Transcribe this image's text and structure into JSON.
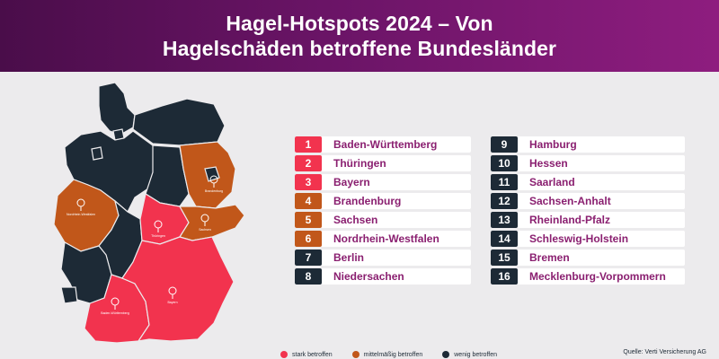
{
  "header": {
    "title_line1": "Hagel-Hotspots 2024 – Von",
    "title_line2": "Hagelschäden betroffene Bundesländer"
  },
  "colors": {
    "header_start": "#4a0d4a",
    "header_end": "#8e1d7f",
    "strong": "#f2334e",
    "medium": "#c1571a",
    "low": "#1d2a36",
    "name_text": "#8a1f70",
    "background": "#ecebed"
  },
  "ranking": [
    {
      "rank": "1",
      "name": "Baden-Württemberg",
      "level": "strong"
    },
    {
      "rank": "2",
      "name": "Thüringen",
      "level": "strong"
    },
    {
      "rank": "3",
      "name": "Bayern",
      "level": "strong"
    },
    {
      "rank": "4",
      "name": "Brandenburg",
      "level": "medium"
    },
    {
      "rank": "5",
      "name": "Sachsen",
      "level": "medium"
    },
    {
      "rank": "6",
      "name": "Nordrhein-Westfalen",
      "level": "medium"
    },
    {
      "rank": "7",
      "name": "Berlin",
      "level": "low"
    },
    {
      "rank": "8",
      "name": "Niedersachen",
      "level": "low"
    },
    {
      "rank": "9",
      "name": "Hamburg",
      "level": "low"
    },
    {
      "rank": "10",
      "name": "Hessen",
      "level": "low"
    },
    {
      "rank": "11",
      "name": "Saarland",
      "level": "low"
    },
    {
      "rank": "12",
      "name": "Sachsen-Anhalt",
      "level": "low"
    },
    {
      "rank": "13",
      "name": "Rheinland-Pfalz",
      "level": "low"
    },
    {
      "rank": "14",
      "name": "Schleswig-Holstein",
      "level": "low"
    },
    {
      "rank": "15",
      "name": "Bremen",
      "level": "low"
    },
    {
      "rank": "16",
      "name": "Mecklenburg-Vorpommern",
      "level": "low"
    }
  ],
  "map": {
    "pins": [
      {
        "name": "Nordrhein-Westfalen",
        "rank": "6",
        "level": "medium"
      },
      {
        "name": "Brandenburg",
        "rank": "4",
        "level": "medium"
      },
      {
        "name": "Sachsen",
        "rank": "5",
        "level": "medium"
      },
      {
        "name": "Thüringen",
        "rank": "2",
        "level": "strong"
      },
      {
        "name": "Baden-Württemberg",
        "rank": "1",
        "level": "strong"
      },
      {
        "name": "Bayern",
        "rank": "3",
        "level": "strong"
      }
    ]
  },
  "legend": {
    "strong": "stark betroffen",
    "medium": "mittelmäßig betroffen",
    "low": "wenig betroffen"
  },
  "source": "Quelle: Verti Versicherung AG"
}
